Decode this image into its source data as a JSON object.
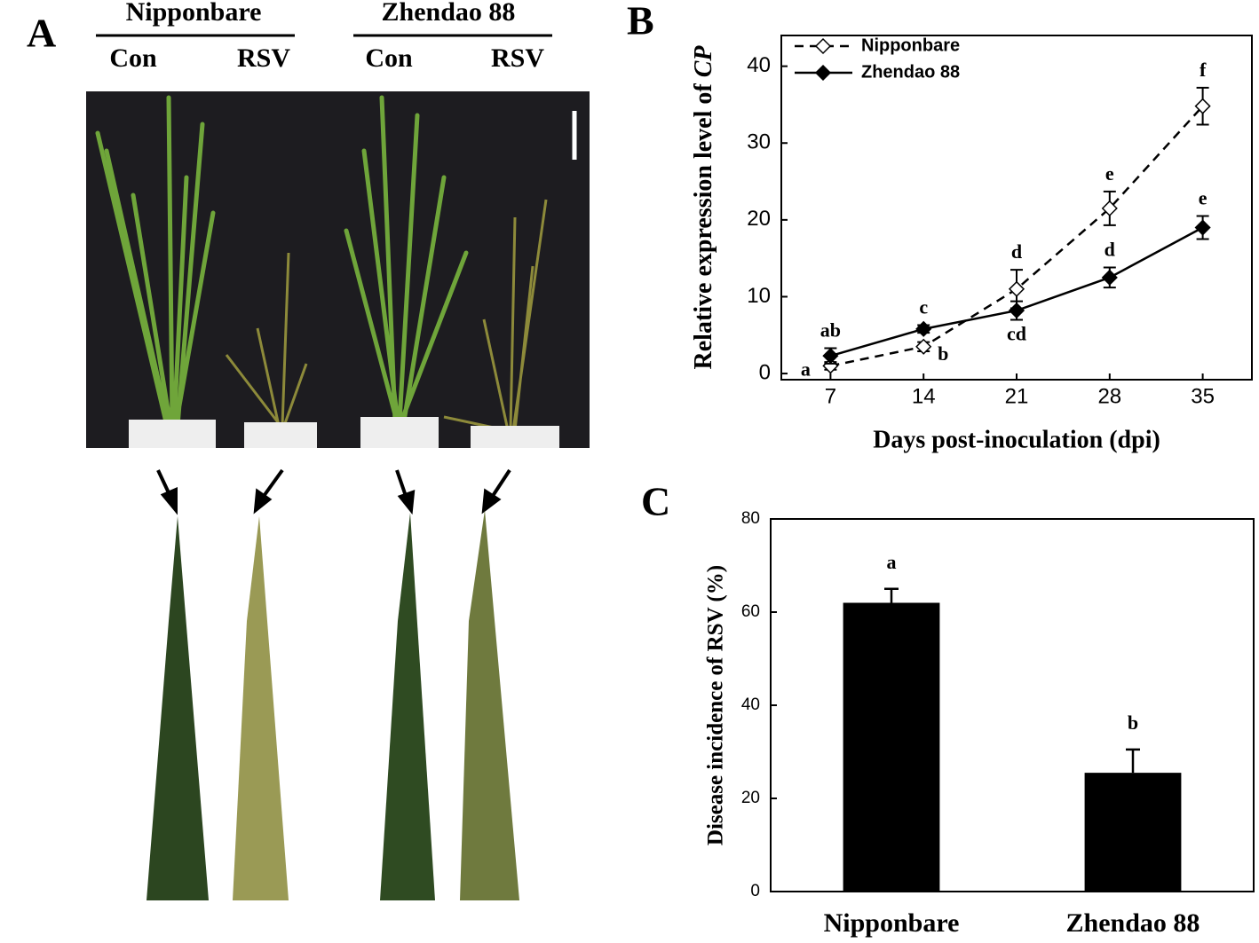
{
  "panel_labels": [
    "A",
    "B",
    "C"
  ],
  "photo": {
    "groups": [
      {
        "name": "Nipponbare",
        "columns": [
          "Con",
          "RSV"
        ]
      },
      {
        "name": "Zhendao 88",
        "columns": [
          "Con",
          "RSV"
        ]
      }
    ]
  },
  "chart_data": [
    {
      "type": "line",
      "ylabel": "Relative expression level of ",
      "ylabel_italic": "CP",
      "xlabel": "Days post-inoculation (dpi)",
      "x": [
        7,
        14,
        21,
        28,
        35
      ],
      "xlim": [
        3.3,
        38.7
      ],
      "xticks": [
        7,
        14,
        21,
        28,
        35
      ],
      "ylim": [
        -0.8,
        44
      ],
      "yticks": [
        0,
        10,
        20,
        30,
        40
      ],
      "legend": "upper left",
      "series": [
        {
          "name": "Nipponbare",
          "color": "#000000",
          "style": "dashed",
          "marker": "open-diamond",
          "values": [
            1,
            3.5,
            11,
            21.5,
            34.8
          ],
          "errors": [
            0.5,
            0.6,
            2.5,
            2.2,
            2.4
          ],
          "labels": [
            "a",
            "b",
            "d",
            "e",
            "f"
          ]
        },
        {
          "name": "Zhendao 88",
          "color": "#000000",
          "style": "solid",
          "marker": "filled-diamond",
          "values": [
            2.3,
            5.8,
            8.2,
            12.5,
            19
          ],
          "errors": [
            1,
            0.5,
            1.2,
            1.3,
            1.5
          ],
          "labels": [
            "ab",
            "c",
            "cd",
            "d",
            "e"
          ]
        }
      ]
    },
    {
      "type": "bar",
      "ylabel": "Disease incidence of  RSV (%)",
      "categories": [
        "Nipponbare",
        "Zhendao 88"
      ],
      "values": [
        62,
        25.5
      ],
      "errors": [
        3,
        5
      ],
      "labels": [
        "a",
        "b"
      ],
      "color": "#000000",
      "ylim": [
        0,
        80
      ],
      "yticks": [
        0,
        20,
        40,
        60,
        80
      ]
    }
  ]
}
